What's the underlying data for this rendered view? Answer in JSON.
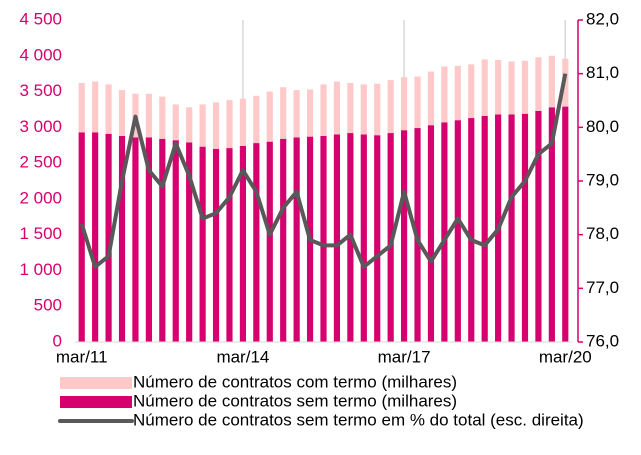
{
  "chart_data": {
    "type": "bar",
    "categories": [
      "mar/11",
      null,
      null,
      null,
      null,
      null,
      null,
      null,
      null,
      null,
      null,
      null,
      "mar/14",
      null,
      null,
      null,
      null,
      null,
      null,
      null,
      null,
      null,
      null,
      null,
      "mar/17",
      null,
      null,
      null,
      null,
      null,
      null,
      null,
      null,
      null,
      null,
      null,
      "mar/20"
    ],
    "series": [
      {
        "name": "Número de contratos sem termo (milhares)",
        "color": "#d6006e",
        "type": "bar",
        "values": [
          2930,
          2930,
          2910,
          2880,
          2860,
          2860,
          2840,
          2820,
          2790,
          2730,
          2700,
          2710,
          2740,
          2780,
          2800,
          2840,
          2860,
          2870,
          2880,
          2900,
          2920,
          2900,
          2890,
          2920,
          2960,
          2990,
          3030,
          3070,
          3100,
          3130,
          3160,
          3180,
          3180,
          3190,
          3230,
          3280,
          3290
        ]
      },
      {
        "name": "Número de contratos com termo (milhares)",
        "color": "#ffc9c9",
        "type": "bar",
        "values": [
          690,
          710,
          690,
          640,
          610,
          610,
          590,
          500,
          490,
          590,
          650,
          670,
          660,
          660,
          700,
          720,
          660,
          660,
          720,
          740,
          700,
          700,
          720,
          740,
          740,
          720,
          750,
          780,
          760,
          750,
          790,
          760,
          740,
          740,
          750,
          720,
          670
        ]
      },
      {
        "name": "Número de contratos sem termo em % do total (esc. direita)",
        "color": "#595959",
        "type": "line",
        "axis": "y2",
        "values": [
          78.2,
          77.4,
          77.6,
          79.0,
          80.2,
          79.2,
          78.9,
          79.7,
          79.1,
          78.3,
          78.4,
          78.7,
          79.2,
          78.8,
          78.0,
          78.5,
          78.8,
          77.9,
          77.8,
          77.8,
          78.0,
          77.4,
          77.6,
          77.8,
          78.8,
          77.9,
          77.5,
          77.9,
          78.3,
          77.9,
          77.8,
          78.1,
          78.7,
          79.0,
          79.5,
          79.7,
          81.0
        ]
      }
    ],
    "ylim": [
      0,
      4500
    ],
    "yticks": [
      0,
      500,
      {
        "value": 1000,
        "label": "1 000"
      },
      {
        "value": 1500,
        "label": "1 500"
      },
      {
        "value": 2000,
        "label": "2 000"
      },
      {
        "value": 2500,
        "label": "2 500"
      },
      {
        "value": 3000,
        "label": "3 000"
      },
      {
        "value": 3500,
        "label": "3 500"
      },
      {
        "value": 4000,
        "label": "4 000"
      },
      {
        "value": 4500,
        "label": "4 500"
      }
    ],
    "y2lim": [
      76,
      82
    ],
    "y2ticks": [
      {
        "value": 76,
        "label": "76,0"
      },
      {
        "value": 77,
        "label": "77,0"
      },
      {
        "value": 78,
        "label": "78,0"
      },
      {
        "value": 79,
        "label": "79,0"
      },
      {
        "value": 80,
        "label": "80,0"
      },
      {
        "value": 81,
        "label": "81,0"
      },
      {
        "value": 82,
        "label": "82,0"
      }
    ],
    "stacked": true
  }
}
